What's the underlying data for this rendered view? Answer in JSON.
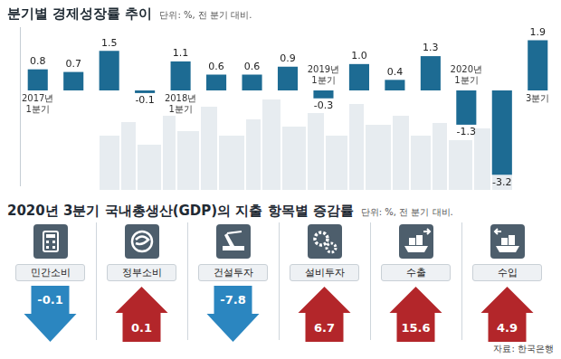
{
  "chart_data": [
    {
      "type": "bar",
      "title": "분기별 경제성장률 추이",
      "subtitle": "단위: %, 전 분기 대비.",
      "categories": [
        "2017년 1분기",
        null,
        null,
        null,
        "2018년 1분기",
        null,
        null,
        null,
        "2019년 1분기",
        null,
        null,
        null,
        "2020년 1분기",
        null,
        "3분기"
      ],
      "values": [
        0.8,
        0.7,
        1.5,
        -0.1,
        1.1,
        0.6,
        0.6,
        0.9,
        -0.3,
        1.0,
        0.4,
        1.3,
        -1.3,
        -3.2,
        1.9
      ],
      "value_labels": [
        "0.8",
        "0.7",
        "1.5",
        "-0.1",
        "1.1",
        "0.6",
        "0.6",
        "0.9",
        "-0.3",
        "1.0",
        "0.4",
        "1.3",
        "-1.3",
        "-3.2",
        "1.9"
      ],
      "color": "#1d6b93",
      "ylim": [
        -3.6,
        2.4
      ],
      "grid": false,
      "data_labels": true,
      "tick_labels": false
    },
    {
      "type": "arrow",
      "title": "2020년 3분기 국내총생산(GDP)의 지출 항목별 증감률",
      "subtitle": "단위: %, 전 분기 대비.",
      "categories": [
        "민간소비",
        "정부소비",
        "건설투자",
        "설비투자",
        "수출",
        "수입"
      ],
      "values": [
        -0.1,
        0.1,
        -7.8,
        6.7,
        15.6,
        4.9
      ],
      "colors": [
        "#2b86c0",
        "#b3262a",
        "#2b86c0",
        "#b3262a",
        "#b3262a",
        "#b3262a"
      ],
      "data_labels": true
    }
  ],
  "source": "자료: 한국은행"
}
